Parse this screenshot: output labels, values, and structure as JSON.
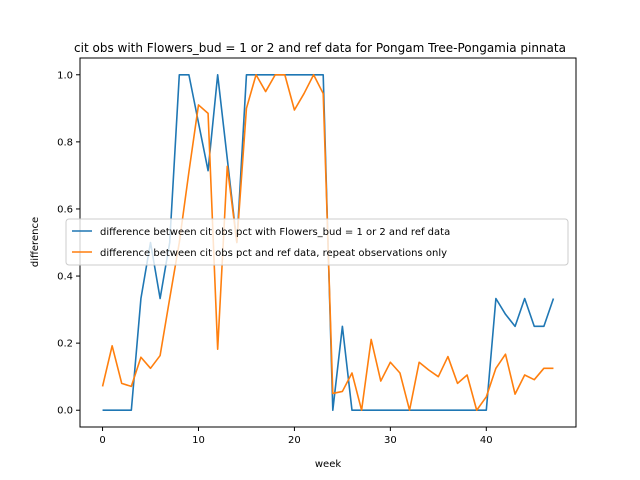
{
  "chart_data": {
    "type": "line",
    "title": "cit obs with Flowers_bud = 1 or 2 and ref data for Pongam Tree-Pongamia pinnata",
    "xlabel": "week",
    "ylabel": "difference",
    "xlim": [
      -2.35,
      49.35
    ],
    "ylim": [
      -0.05,
      1.05
    ],
    "xticks": [
      0,
      10,
      20,
      30,
      40
    ],
    "yticks": [
      0.0,
      0.2,
      0.4,
      0.6,
      0.8,
      1.0
    ],
    "xtick_labels": [
      "0",
      "10",
      "20",
      "30",
      "40"
    ],
    "ytick_labels": [
      "0.0",
      "0.2",
      "0.4",
      "0.6",
      "0.8",
      "1.0"
    ],
    "grid": false,
    "legend_position": "center-right",
    "series": [
      {
        "name": "difference between cit obs pct with Flowers_bud = 1 or 2 and ref data",
        "color": "#1f77b4",
        "x": [
          0,
          1,
          2,
          3,
          4,
          5,
          6,
          7,
          8,
          9,
          10,
          11,
          12,
          13,
          14,
          15,
          16,
          17,
          18,
          19,
          20,
          21,
          22,
          23,
          24,
          25,
          26,
          27,
          28,
          29,
          30,
          31,
          32,
          33,
          34,
          35,
          36,
          37,
          38,
          39,
          40,
          41,
          42,
          43,
          44,
          45,
          46,
          47
        ],
        "y": [
          0,
          0,
          0,
          0,
          0.333,
          0.5,
          0.333,
          0.5,
          1.0,
          1.0,
          0.857,
          0.714,
          1.0,
          0.75,
          0.5,
          1.0,
          1.0,
          1.0,
          1.0,
          1.0,
          1.0,
          1.0,
          1.0,
          1.0,
          0,
          0.25,
          0,
          0,
          0,
          0,
          0,
          0,
          0,
          0,
          0,
          0,
          0,
          0,
          0,
          0,
          0,
          0.333,
          0.286,
          0.25,
          0.333,
          0.25,
          0.25,
          0.333
        ]
      },
      {
        "name": "difference between cit obs pct and ref data, repeat observations only",
        "color": "#ff7f0e",
        "x": [
          0,
          1,
          2,
          3,
          4,
          5,
          6,
          7,
          8,
          9,
          10,
          11,
          12,
          13,
          14,
          15,
          16,
          17,
          18,
          19,
          20,
          21,
          22,
          23,
          24,
          25,
          26,
          27,
          28,
          29,
          30,
          31,
          32,
          33,
          34,
          35,
          36,
          37,
          38,
          39,
          40,
          41,
          42,
          43,
          44,
          45,
          46,
          47
        ],
        "y": [
          0.071,
          0.192,
          0.08,
          0.071,
          0.158,
          0.125,
          0.163,
          0.333,
          0.5,
          0.71,
          0.91,
          0.885,
          0.182,
          0.727,
          0.5,
          0.9,
          1.0,
          0.95,
          1.0,
          1.0,
          0.895,
          0.944,
          1.0,
          0.944,
          0.05,
          0.056,
          0.111,
          0,
          0.211,
          0.087,
          0.143,
          0.111,
          0,
          0.143,
          0.12,
          0.1,
          0.16,
          0.08,
          0.105,
          0,
          0.04,
          0.125,
          0.167,
          0.048,
          0.105,
          0.091,
          0.125,
          0.125
        ]
      }
    ]
  }
}
